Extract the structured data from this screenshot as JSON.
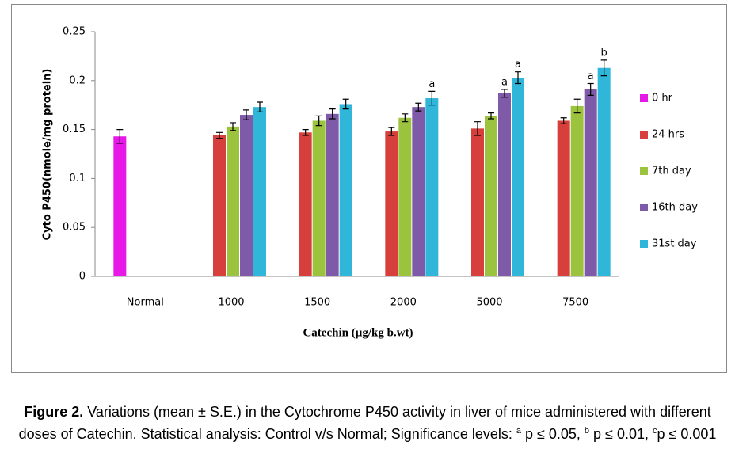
{
  "chart_data": {
    "type": "bar",
    "y_label": "Cyto P450(nmole/mg protein)",
    "x_label": "Catechin (µg/kg b.wt)",
    "categories": [
      "Normal",
      "1000",
      "1500",
      "2000",
      "5000",
      "7500"
    ],
    "ylim": [
      0,
      0.25
    ],
    "yticks": [
      0,
      0.05,
      0.1,
      0.15,
      0.2,
      0.25
    ],
    "grid": false,
    "legend": "right",
    "series": [
      {
        "name": "0 hr",
        "color": "#e619e6",
        "values": [
          0.143,
          null,
          null,
          null,
          null,
          null
        ],
        "errors": [
          0.007,
          null,
          null,
          null,
          null,
          null
        ],
        "sig_labels": [
          null,
          null,
          null,
          null,
          null,
          null
        ]
      },
      {
        "name": "24 hrs",
        "color": "#d63f3c",
        "values": [
          null,
          0.144,
          0.147,
          0.148,
          0.151,
          0.159
        ],
        "errors": [
          null,
          0.003,
          0.003,
          0.004,
          0.007,
          0.003
        ],
        "sig_labels": [
          null,
          null,
          null,
          null,
          null,
          null
        ]
      },
      {
        "name": "7th day",
        "color": "#9bc33d",
        "values": [
          null,
          0.153,
          0.159,
          0.162,
          0.164,
          0.174
        ],
        "errors": [
          null,
          0.004,
          0.005,
          0.004,
          0.003,
          0.007
        ],
        "sig_labels": [
          null,
          null,
          null,
          null,
          null,
          null
        ]
      },
      {
        "name": "16th day",
        "color": "#7e5aa8",
        "values": [
          null,
          0.165,
          0.166,
          0.173,
          0.187,
          0.191
        ],
        "errors": [
          null,
          0.005,
          0.005,
          0.004,
          0.004,
          0.006
        ],
        "sig_labels": [
          null,
          null,
          null,
          null,
          "a",
          "a"
        ]
      },
      {
        "name": "31st  day",
        "color": "#2fb6d8",
        "values": [
          null,
          0.173,
          0.176,
          0.182,
          0.203,
          0.213
        ],
        "errors": [
          null,
          0.005,
          0.005,
          0.007,
          0.006,
          0.008
        ],
        "sig_labels": [
          null,
          null,
          null,
          "a",
          "a",
          "b"
        ]
      }
    ]
  },
  "caption": {
    "label": "Figure 2.",
    "text": " Variations (mean ± S.E.) in the Cytochrome P450 activity in liver of mice administered with different doses of Catechin.  Statistical analysis: Control v/s Normal; Significance levels: ",
    "sup_a": "a",
    "text_a": " p ≤ 0.05, ",
    "sup_b": "b",
    "text_b": " p ≤ 0.01, ",
    "sup_c": "c",
    "text_c": "p  ≤ 0.001"
  }
}
